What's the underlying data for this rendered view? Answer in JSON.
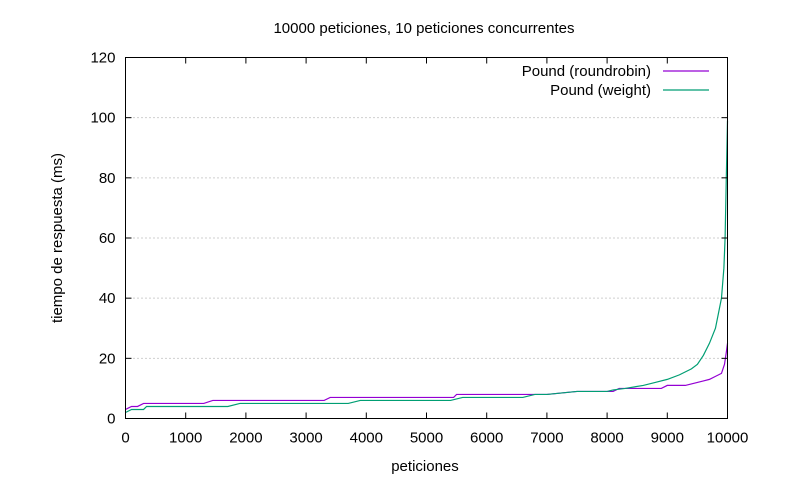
{
  "chart_data": {
    "type": "line",
    "title": "10000 peticiones, 10 peticiones concurrentes",
    "xlabel": "peticiones",
    "ylabel": "tiempo de respuesta (ms)",
    "xlim": [
      0,
      10000
    ],
    "ylim": [
      0,
      120
    ],
    "xticks": [
      0,
      1000,
      2000,
      3000,
      4000,
      5000,
      6000,
      7000,
      8000,
      9000,
      10000
    ],
    "yticks": [
      0,
      20,
      40,
      60,
      80,
      100,
      120
    ],
    "grid": "horizontal-dotted",
    "legend_position": "top-right",
    "series": [
      {
        "name": "Pound (roundrobin)",
        "color": "#9400d3",
        "x": [
          0,
          50,
          100,
          200,
          300,
          350,
          1000,
          1300,
          1450,
          1600,
          2500,
          3300,
          3400,
          4000,
          5000,
          5450,
          5500,
          6000,
          6900,
          7000,
          7500,
          8000,
          8100,
          8200,
          8500,
          8900,
          9000,
          9300,
          9400,
          9500,
          9600,
          9700,
          9800,
          9850,
          9900,
          9950,
          9980,
          10000
        ],
        "y": [
          3,
          3.5,
          4,
          4,
          5,
          5,
          5,
          5,
          6,
          6,
          6,
          6,
          7,
          7,
          7,
          7,
          8,
          8,
          8,
          8,
          9,
          9,
          9,
          10,
          10,
          10,
          11,
          11,
          11.5,
          12,
          12.5,
          13,
          14,
          14.5,
          15,
          18,
          22,
          25
        ]
      },
      {
        "name": "Pound (weight)",
        "color": "#009e73",
        "x": [
          0,
          50,
          100,
          300,
          350,
          500,
          1700,
          1900,
          2500,
          3700,
          3900,
          4500,
          5400,
          5600,
          6600,
          6800,
          7000,
          7500,
          8000,
          8100,
          8300,
          8600,
          8800,
          9000,
          9200,
          9400,
          9500,
          9600,
          9700,
          9800,
          9850,
          9900,
          9940,
          9960,
          9980,
          10000
        ],
        "y": [
          2,
          2.5,
          3,
          3,
          4,
          4,
          4,
          5,
          5,
          5,
          6,
          6,
          6,
          7,
          7,
          8,
          8,
          9,
          9,
          9.5,
          10,
          11,
          12,
          13,
          14.5,
          16.5,
          18,
          21,
          25,
          30,
          35,
          40,
          50,
          60,
          80,
          99
        ]
      }
    ]
  }
}
